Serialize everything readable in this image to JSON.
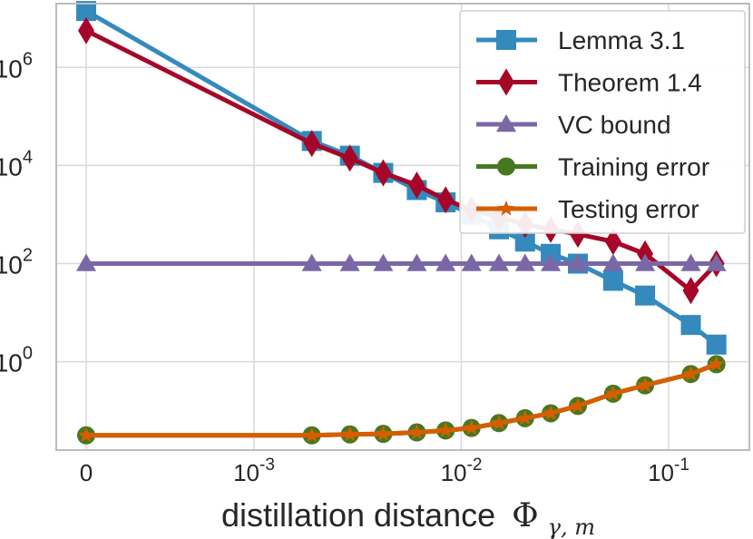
{
  "chart_data": {
    "type": "line",
    "xlabel": "distillation distance",
    "xlabel_symbol": "Φ",
    "xlabel_subscript": "γ, m",
    "yscale": "log10",
    "ylim_log10": [
      -1.8,
      7.3
    ],
    "y_ticks": [
      {
        "base": "10",
        "exp": "0",
        "log10": 0
      },
      {
        "base": "10",
        "exp": "2",
        "log10": 2
      },
      {
        "base": "10",
        "exp": "4",
        "log10": 4
      },
      {
        "base": "10",
        "exp": "6",
        "log10": 6
      }
    ],
    "x_ticks": [
      {
        "base": "0",
        "exp": "",
        "x": 0
      },
      {
        "base": "10",
        "exp": "-3",
        "x": 0.001
      },
      {
        "base": "10",
        "exp": "-2",
        "x": 0.01
      },
      {
        "base": "10",
        "exp": "-1",
        "x": 0.1
      }
    ],
    "grid": true,
    "legend_position": "top-right",
    "x": [
      0,
      0.0019,
      0.0029,
      0.0042,
      0.0061,
      0.0084,
      0.0112,
      0.0152,
      0.0203,
      0.027,
      0.0365,
      0.054,
      0.077,
      0.128,
      0.17
    ],
    "series": [
      {
        "name": "Lemma 3.1",
        "color": "#348abd",
        "marker": "square",
        "values_log10": [
          7.15,
          4.5,
          4.2,
          3.85,
          3.5,
          3.25,
          3.0,
          2.7,
          2.45,
          2.2,
          2.0,
          1.65,
          1.35,
          0.75,
          0.35
        ]
      },
      {
        "name": "Theorem 1.4",
        "color": "#a60628",
        "marker": "diamond",
        "values_log10": [
          6.75,
          4.45,
          4.15,
          3.85,
          3.6,
          3.3,
          3.1,
          2.95,
          2.8,
          2.7,
          2.6,
          2.45,
          2.2,
          1.45,
          2.0
        ]
      },
      {
        "name": "VC bound",
        "color": "#7a68a6",
        "marker": "triangle",
        "values_log10": [
          2.0,
          2.0,
          2.0,
          2.0,
          2.0,
          2.0,
          2.0,
          2.0,
          2.0,
          2.0,
          2.0,
          2.0,
          2.0,
          2.0,
          2.0
        ]
      },
      {
        "name": "Training error",
        "color": "#467821",
        "marker": "circle",
        "values_log10": [
          -1.5,
          -1.5,
          -1.48,
          -1.47,
          -1.44,
          -1.4,
          -1.35,
          -1.25,
          -1.15,
          -1.05,
          -0.9,
          -0.65,
          -0.48,
          -0.25,
          -0.05
        ]
      },
      {
        "name": "Testing error",
        "color": "#d55e00",
        "marker": "star",
        "values_log10": [
          -1.5,
          -1.5,
          -1.48,
          -1.47,
          -1.44,
          -1.4,
          -1.35,
          -1.25,
          -1.15,
          -1.05,
          -0.9,
          -0.65,
          -0.48,
          -0.25,
          -0.05
        ]
      }
    ]
  }
}
